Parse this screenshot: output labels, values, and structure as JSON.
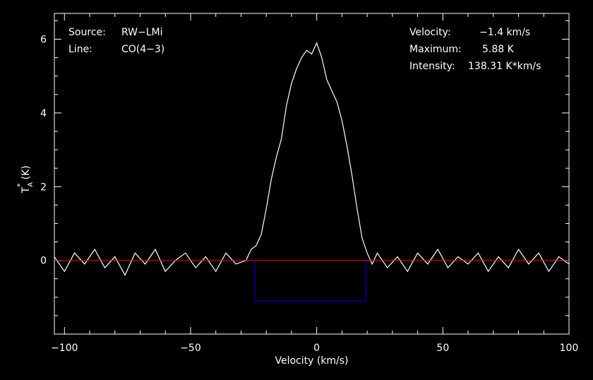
{
  "chart_data": {
    "type": "line",
    "xlabel": "Velocity (km/s)",
    "ylabel_main": "T",
    "ylabel_sub": "A",
    "ylabel_sup": "*",
    "ylabel_unit": "(K)",
    "xlim": [
      -104,
      100
    ],
    "ylim": [
      -2.0,
      6.7
    ],
    "x_ticks": [
      -100,
      -50,
      0,
      50,
      100
    ],
    "x_tick_labels": [
      "−100",
      "−50",
      "0",
      "50",
      "100"
    ],
    "y_ticks": [
      0,
      2,
      4,
      6
    ],
    "y_tick_labels": [
      "0",
      "2",
      "4",
      "6"
    ],
    "grid": false,
    "baseline": 0,
    "baseline_color": "#ff0000",
    "integration_window": {
      "x_start": -24.5,
      "x_end": 19.5,
      "y_level": -1.1,
      "color": "#0000ff"
    },
    "annotations_left": [
      {
        "key": "Source:",
        "value": "RW−LMi"
      },
      {
        "key": "Line:",
        "value": "CO(4−3)"
      }
    ],
    "annotations_right": [
      {
        "key": "Velocity:",
        "value": "−1.4 km/s"
      },
      {
        "key": "Maximum:",
        "value": "5.88 K"
      },
      {
        "key": "Intensity:",
        "value": "138.31 K*km/s"
      }
    ],
    "series": [
      {
        "line_color": "#ffffff",
        "x": [
          -104,
          -100,
          -96,
          -92,
          -88,
          -84,
          -80,
          -76,
          -72,
          -68,
          -64,
          -60,
          -56,
          -52,
          -48,
          -44,
          -40,
          -36,
          -32,
          -28,
          -26,
          -24,
          -22,
          -20,
          -18,
          -16,
          -14,
          -12,
          -10,
          -8,
          -6,
          -4,
          -2,
          0,
          2,
          4,
          6,
          8,
          10,
          12,
          14,
          16,
          18,
          20,
          22,
          24,
          28,
          32,
          36,
          40,
          44,
          48,
          52,
          56,
          60,
          64,
          68,
          72,
          76,
          80,
          84,
          88,
          92,
          96,
          100
        ],
        "y": [
          0.1,
          -0.3,
          0.2,
          -0.1,
          0.3,
          -0.2,
          0.1,
          -0.4,
          0.2,
          -0.1,
          0.3,
          -0.3,
          0.0,
          0.2,
          -0.2,
          0.1,
          -0.3,
          0.2,
          -0.1,
          0.0,
          0.3,
          0.4,
          0.7,
          1.4,
          2.2,
          2.8,
          3.3,
          4.2,
          4.8,
          5.2,
          5.5,
          5.7,
          5.6,
          5.9,
          5.5,
          4.9,
          4.6,
          4.3,
          3.8,
          3.1,
          2.3,
          1.4,
          0.6,
          0.2,
          -0.1,
          0.2,
          -0.2,
          0.1,
          -0.3,
          0.2,
          -0.1,
          0.3,
          -0.2,
          0.1,
          -0.1,
          0.2,
          -0.3,
          0.1,
          -0.2,
          0.3,
          -0.1,
          0.2,
          -0.3,
          0.1,
          -0.1
        ]
      }
    ]
  }
}
